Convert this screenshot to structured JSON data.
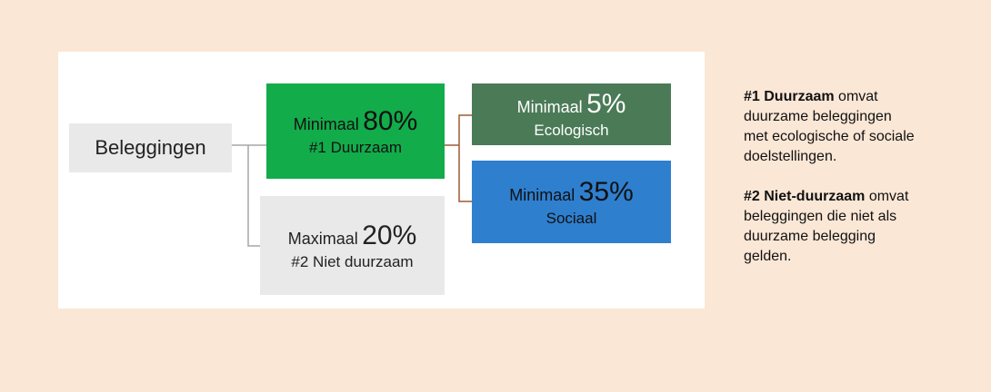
{
  "nodes": [
    {
      "label": "Beleggingen"
    },
    {
      "prefix": "Minimaal",
      "percent": "80%",
      "label": "#1 Duurzaam"
    },
    {
      "prefix": "Maximaal",
      "percent": "20%",
      "label": "#2 Niet duurzaam"
    },
    {
      "prefix": "Minimaal",
      "percent": "5%",
      "label": "Ecologisch"
    },
    {
      "prefix": "Minimaal",
      "percent": "35%",
      "label": "Sociaal"
    }
  ],
  "notes": [
    {
      "term": "#1 Duurzaam",
      "text": "omvat duurzame beleggingen met ecologische of sociale doelstellingen."
    },
    {
      "term": "#2 Niet-duurzaam",
      "text": "omvat beleggingen die niet als duurzame belegging gelden."
    }
  ]
}
